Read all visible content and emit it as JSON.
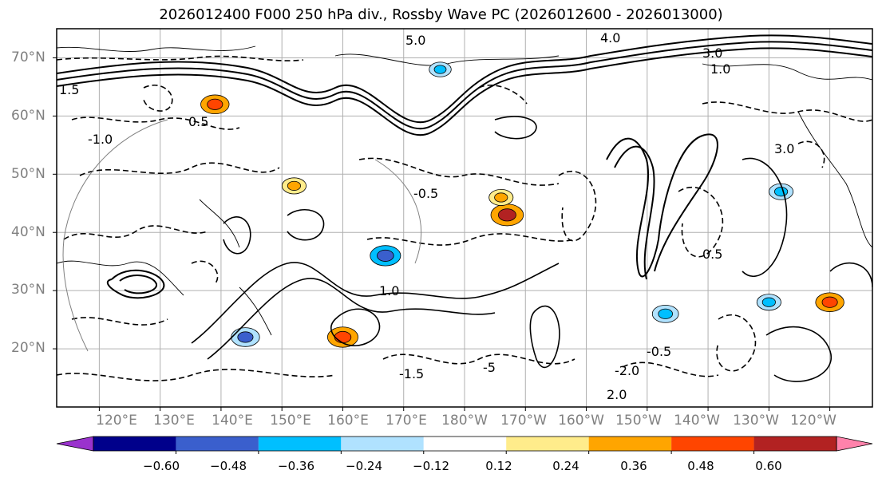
{
  "title": "2026012400 F000 250 hPa div., Rossby Wave PC (2026012600 - 2026013000)",
  "map": {
    "projection": "lat-lon",
    "lon_range": [
      113,
      247
    ],
    "lat_range": [
      10,
      75
    ],
    "lat_ticks": [
      "70°N",
      "60°N",
      "50°N",
      "40°N",
      "30°N",
      "20°N"
    ],
    "lon_ticks": [
      "120°E",
      "130°E",
      "140°E",
      "150°E",
      "160°E",
      "170°E",
      "180°W",
      "170°W",
      "160°W",
      "150°W",
      "140°W",
      "130°W",
      "120°W"
    ],
    "contour_labels": [
      "5.0",
      "4.0",
      "3.0",
      "1.0",
      "1.5",
      "0.5",
      "-0.5",
      "-1.0",
      "-1.5",
      "2.0",
      "-2.0",
      "-5",
      "0.5",
      "-0.5",
      "3.0",
      "1.0"
    ],
    "divergence_patches": [
      {
        "lon": 139,
        "lat": 62,
        "value": 0.4
      },
      {
        "lon": 160,
        "lat": 22,
        "value": 0.45
      },
      {
        "lon": 187,
        "lat": 43,
        "value": 0.5
      },
      {
        "lon": 240,
        "lat": 28,
        "value": 0.4
      },
      {
        "lon": 167,
        "lat": 36,
        "value": -0.45
      },
      {
        "lon": 144,
        "lat": 22,
        "value": -0.4
      },
      {
        "lon": 213,
        "lat": 26,
        "value": -0.35
      },
      {
        "lon": 230,
        "lat": 28,
        "value": -0.3
      },
      {
        "lon": 232,
        "lat": 47,
        "value": -0.3
      },
      {
        "lon": 186,
        "lat": 46,
        "value": 0.3
      },
      {
        "lon": 176,
        "lat": 68,
        "value": -0.25
      },
      {
        "lon": 152,
        "lat": 48,
        "value": 0.3
      }
    ]
  },
  "colorbar": {
    "ticks": [
      "−0.60",
      "−0.48",
      "−0.36",
      "−0.24",
      "−0.12",
      "0.12",
      "0.24",
      "0.36",
      "0.48",
      "0.60"
    ],
    "colors": [
      "#9a32cd",
      "#00008b",
      "#3a5fcd",
      "#00bfff",
      "#b0e2ff",
      "#ffffff",
      "#ffec8b",
      "#ffa500",
      "#ff4500",
      "#b22222",
      "#ff82ab"
    ]
  }
}
